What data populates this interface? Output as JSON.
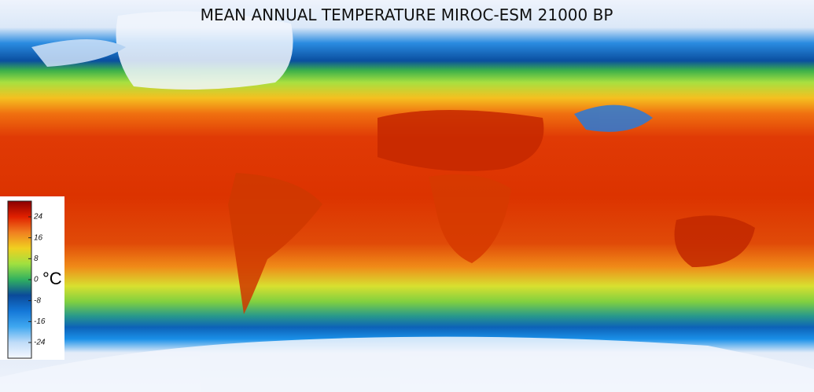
{
  "title": "MEAN ANNUAL TEMPERATURE MIROC-ESM 21000 BP",
  "legend": {
    "unit": "°C",
    "range": [
      -30,
      30
    ],
    "ticks": [
      24,
      16,
      8,
      0,
      -8,
      -16,
      -24
    ],
    "colors": [
      "#f4f8ff",
      "#c0dcf8",
      "#40a8f0",
      "#1478d8",
      "#0a4a9a",
      "#30b060",
      "#a0e040",
      "#f0d020",
      "#f08020",
      "#e02000",
      "#8b0000"
    ]
  }
}
